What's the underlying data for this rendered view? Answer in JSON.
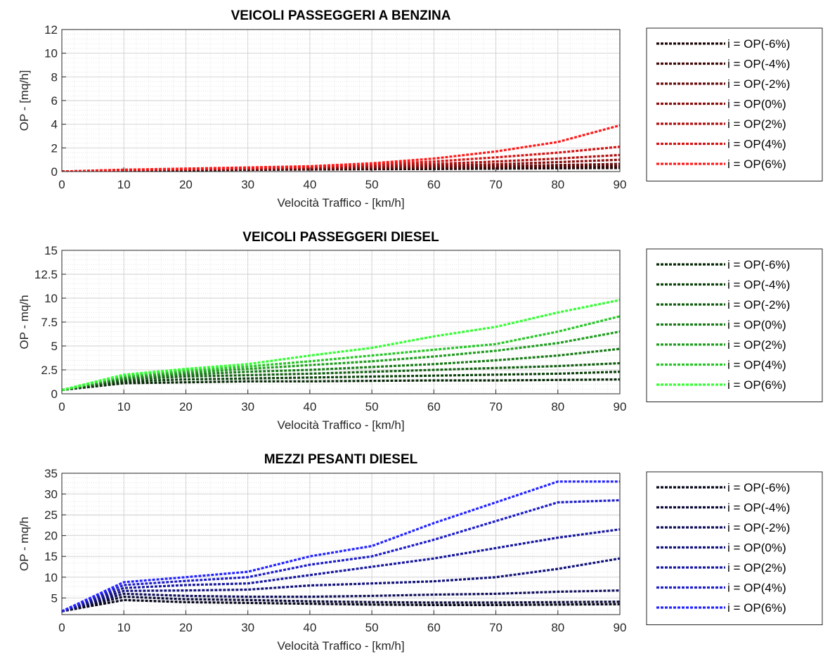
{
  "chart_data": [
    {
      "type": "line",
      "title": "VEICOLI PASSEGGERI A BENZINA",
      "xlabel": "Velocità Traffico - [km/h]",
      "ylabel": "OP - [mq/h]",
      "xlim": [
        0,
        90
      ],
      "ylim": [
        0,
        12
      ],
      "xticks": [
        "0",
        "10",
        "20",
        "30",
        "40",
        "50",
        "60",
        "70",
        "80",
        "90"
      ],
      "yticks": [
        "0",
        "2",
        "4",
        "6",
        "8",
        "10",
        "12"
      ],
      "grid": true,
      "legend_position": "outside-right",
      "x": [
        0,
        10,
        20,
        30,
        40,
        50,
        60,
        70,
        80,
        90
      ],
      "series": [
        {
          "name": "i = OP(-6%)",
          "color": "#1a0505",
          "values": [
            0.0,
            0.1,
            0.12,
            0.15,
            0.18,
            0.2,
            0.22,
            0.25,
            0.28,
            0.3
          ]
        },
        {
          "name": "i = OP(-4%)",
          "color": "#400808",
          "values": [
            0.0,
            0.11,
            0.14,
            0.17,
            0.2,
            0.24,
            0.28,
            0.33,
            0.38,
            0.45
          ]
        },
        {
          "name": "i = OP(-2%)",
          "color": "#660a0a",
          "values": [
            0.0,
            0.12,
            0.16,
            0.2,
            0.25,
            0.3,
            0.38,
            0.45,
            0.55,
            0.65
          ]
        },
        {
          "name": "i = OP(0%)",
          "color": "#8a0c0c",
          "values": [
            0.0,
            0.13,
            0.18,
            0.23,
            0.3,
            0.38,
            0.5,
            0.62,
            0.8,
            1.0
          ]
        },
        {
          "name": "i = OP(2%)",
          "color": "#b01010",
          "values": [
            0.0,
            0.14,
            0.2,
            0.27,
            0.36,
            0.48,
            0.65,
            0.85,
            1.1,
            1.4
          ]
        },
        {
          "name": "i = OP(4%)",
          "color": "#d41414",
          "values": [
            0.0,
            0.15,
            0.22,
            0.3,
            0.4,
            0.6,
            0.85,
            1.2,
            1.6,
            2.1
          ]
        },
        {
          "name": "i = OP(6%)",
          "color": "#ff1a1a",
          "values": [
            0.0,
            0.16,
            0.25,
            0.35,
            0.45,
            0.7,
            1.1,
            1.7,
            2.5,
            3.9
          ]
        }
      ]
    },
    {
      "type": "line",
      "title": "VEICOLI PASSEGGERI DIESEL",
      "xlabel": "Velocità Traffico - [km/h]",
      "ylabel": "OP - mq/h",
      "xlim": [
        0,
        90
      ],
      "ylim": [
        0,
        15
      ],
      "xticks": [
        "0",
        "10",
        "20",
        "30",
        "40",
        "50",
        "60",
        "70",
        "80",
        "90"
      ],
      "yticks": [
        "0",
        "2.5",
        "5",
        "7.5",
        "10",
        "12.5",
        "15"
      ],
      "grid": true,
      "legend_position": "outside-right",
      "x": [
        0,
        10,
        20,
        30,
        40,
        50,
        60,
        70,
        80,
        90
      ],
      "series": [
        {
          "name": "i = OP(-6%)",
          "color": "#062606",
          "values": [
            0.4,
            1.1,
            1.2,
            1.3,
            1.3,
            1.35,
            1.4,
            1.4,
            1.45,
            1.5
          ]
        },
        {
          "name": "i = OP(-4%)",
          "color": "#0b420b",
          "values": [
            0.4,
            1.3,
            1.5,
            1.6,
            1.7,
            1.8,
            1.9,
            2.0,
            2.1,
            2.3
          ]
        },
        {
          "name": "i = OP(-2%)",
          "color": "#115e11",
          "values": [
            0.4,
            1.5,
            1.8,
            1.95,
            2.1,
            2.3,
            2.5,
            2.7,
            2.9,
            3.2
          ]
        },
        {
          "name": "i = OP(0%)",
          "color": "#187c18",
          "values": [
            0.4,
            1.6,
            2.0,
            2.3,
            2.5,
            2.8,
            3.1,
            3.5,
            4.0,
            4.7
          ]
        },
        {
          "name": "i = OP(2%)",
          "color": "#1f9e1f",
          "values": [
            0.4,
            1.75,
            2.2,
            2.6,
            3.0,
            3.4,
            3.9,
            4.5,
            5.3,
            6.5
          ]
        },
        {
          "name": "i = OP(4%)",
          "color": "#29c629",
          "values": [
            0.4,
            1.85,
            2.4,
            2.85,
            3.4,
            4.0,
            4.6,
            5.2,
            6.5,
            8.1
          ]
        },
        {
          "name": "i = OP(6%)",
          "color": "#33ff33",
          "values": [
            0.4,
            2.0,
            2.6,
            3.1,
            4.0,
            4.8,
            6.0,
            7.0,
            8.5,
            9.8
          ]
        }
      ]
    },
    {
      "type": "line",
      "title": "MEZZI PESANTI DIESEL",
      "xlabel": "Velocità Traffico - [km/h]",
      "ylabel": "OP - mq/h",
      "xlim": [
        0,
        90
      ],
      "ylim": [
        1,
        35
      ],
      "xticks": [
        "0",
        "10",
        "20",
        "30",
        "40",
        "50",
        "60",
        "70",
        "80",
        "90"
      ],
      "yticks": [
        "5",
        "10",
        "15",
        "20",
        "25",
        "30",
        "35"
      ],
      "grid": true,
      "legend_position": "outside-right",
      "x": [
        0,
        10,
        20,
        30,
        40,
        50,
        60,
        70,
        80,
        90
      ],
      "series": [
        {
          "name": "i = OP(-6%)",
          "color": "#06061a",
          "values": [
            1.8,
            4.5,
            4.0,
            3.8,
            3.6,
            3.4,
            3.3,
            3.3,
            3.4,
            3.5
          ]
        },
        {
          "name": "i = OP(-4%)",
          "color": "#0a0a38",
          "values": [
            1.8,
            5.3,
            4.7,
            4.5,
            4.2,
            4.0,
            3.9,
            3.9,
            4.0,
            4.1
          ]
        },
        {
          "name": "i = OP(-2%)",
          "color": "#0e0e5a",
          "values": [
            1.8,
            6.0,
            5.5,
            5.3,
            5.3,
            5.5,
            5.8,
            6.0,
            6.5,
            6.8
          ]
        },
        {
          "name": "i = OP(0%)",
          "color": "#13137c",
          "values": [
            1.8,
            6.7,
            6.8,
            7.0,
            8.0,
            8.5,
            9.0,
            10.0,
            12.0,
            14.5
          ]
        },
        {
          "name": "i = OP(2%)",
          "color": "#1818a0",
          "values": [
            1.8,
            7.4,
            8.1,
            8.5,
            10.5,
            12.5,
            14.5,
            17.0,
            19.5,
            21.5
          ]
        },
        {
          "name": "i = OP(4%)",
          "color": "#1e1ec8",
          "values": [
            1.8,
            8.1,
            9.1,
            10.0,
            13.0,
            15.0,
            19.0,
            23.5,
            28.0,
            28.5
          ]
        },
        {
          "name": "i = OP(6%)",
          "color": "#2424ff",
          "values": [
            1.8,
            8.8,
            10.0,
            11.3,
            15.0,
            17.5,
            23.0,
            28.0,
            33.0,
            33.0
          ]
        }
      ]
    }
  ]
}
